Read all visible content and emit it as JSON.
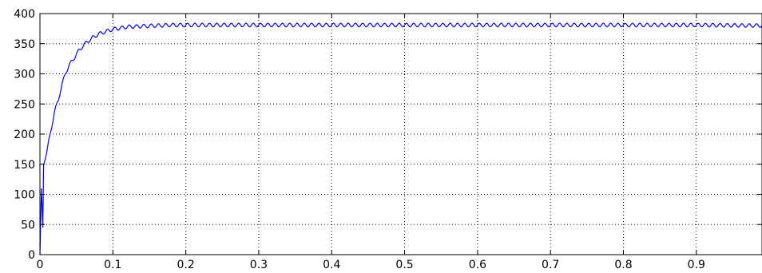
{
  "chart_data": {
    "type": "line",
    "title": "",
    "xlabel": "",
    "ylabel": "",
    "xlim": [
      0,
      0.99
    ],
    "ylim": [
      0,
      400
    ],
    "x_ticks": [
      0,
      0.1,
      0.2,
      0.3,
      0.4,
      0.5,
      0.6,
      0.7,
      0.8,
      0.9
    ],
    "x_tick_labels": [
      "0",
      "0.1",
      "0.2",
      "0.3",
      "0.4",
      "0.5",
      "0.6",
      "0.7",
      "0.8",
      "0.9"
    ],
    "y_ticks": [
      0,
      50,
      100,
      150,
      200,
      250,
      300,
      350,
      400
    ],
    "y_tick_labels": [
      "0",
      "50",
      "100",
      "150",
      "200",
      "250",
      "300",
      "350",
      "400"
    ],
    "grid": "dotted",
    "series": [
      {
        "color": "#0000ff",
        "x": [
          0,
          0.002,
          0.004,
          0.005,
          0.008,
          0.01,
          0.015,
          0.02,
          0.025,
          0.03,
          0.035,
          0.04,
          0.045,
          0.05,
          0.06,
          0.07,
          0.08,
          0.09,
          0.1,
          0.11,
          0.12,
          0.14,
          0.16,
          0.18,
          0.2,
          0.3,
          0.4,
          0.5,
          0.6,
          0.7,
          0.8,
          0.9,
          0.99
        ],
        "y": [
          0,
          110,
          45,
          150,
          165,
          175,
          205,
          238,
          255,
          282,
          300,
          315,
          322,
          333,
          348,
          358,
          366,
          370,
          374,
          376,
          378,
          379,
          380,
          381,
          381,
          381,
          381,
          381,
          381,
          381,
          381,
          381,
          380
        ]
      }
    ],
    "ripple_amplitude": 3
  }
}
